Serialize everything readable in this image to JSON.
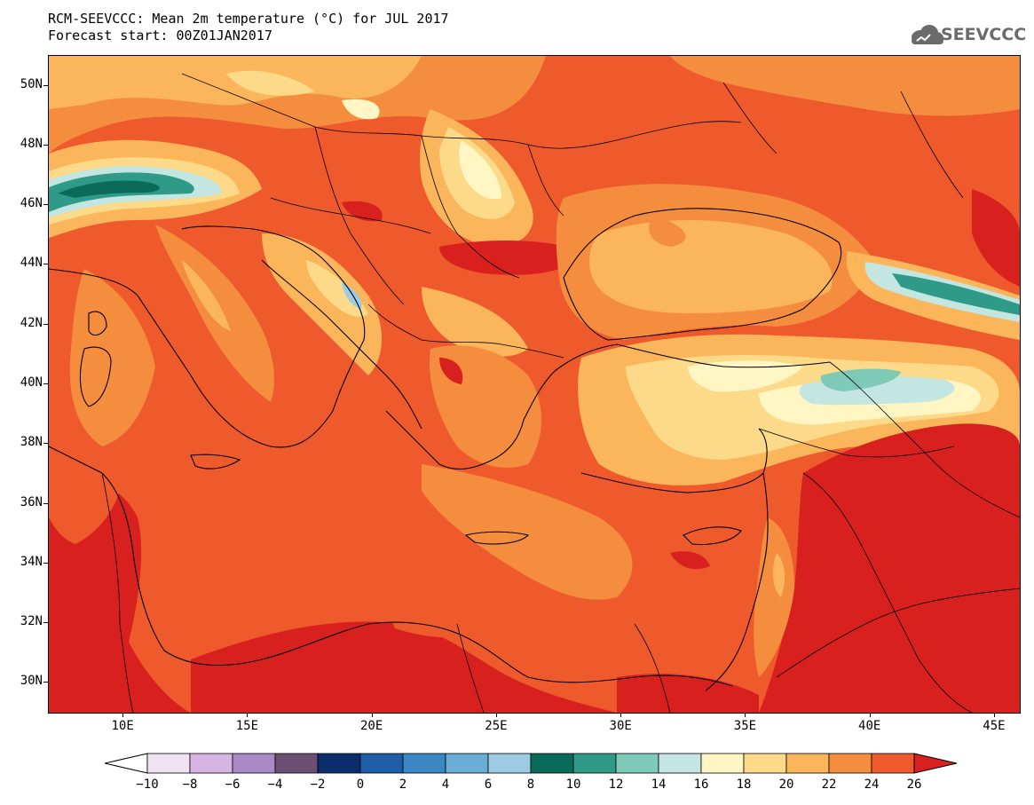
{
  "header": {
    "title_line1": "RCM-SEEVCCC: Mean 2m temperature (°C) for JUL 2017",
    "title_line2": "Forecast start: 00Z01JAN2017",
    "logo_text": "SEEVCCC"
  },
  "map": {
    "lat_labels": [
      "50N",
      "48N",
      "46N",
      "44N",
      "42N",
      "40N",
      "38N",
      "36N",
      "34N",
      "32N",
      "30N"
    ],
    "lon_labels": [
      "10E",
      "15E",
      "20E",
      "25E",
      "30E",
      "35E",
      "40E",
      "45E"
    ],
    "extent": {
      "lon": [
        7,
        46
      ],
      "lat": [
        29,
        51
      ]
    }
  },
  "colorbar": {
    "labels": [
      "−10",
      "−8",
      "−6",
      "−4",
      "−2",
      "0",
      "2",
      "4",
      "6",
      "8",
      "10",
      "12",
      "14",
      "16",
      "18",
      "20",
      "22",
      "24",
      "26"
    ],
    "colors": [
      "#ffffff",
      "#efe2f3",
      "#d8b4e2",
      "#a98ac4",
      "#6b4f75",
      "#0b2d6b",
      "#1f5fa8",
      "#3b88c4",
      "#6aaed6",
      "#9ccbe3",
      "#0a6b5a",
      "#2f9a88",
      "#7fc9b7",
      "#c3e6e1",
      "#fff6c4",
      "#fdd98a",
      "#fbb65c",
      "#f58d3f",
      "#ef5a2d",
      "#d8211f"
    ],
    "unit": "°C"
  }
}
